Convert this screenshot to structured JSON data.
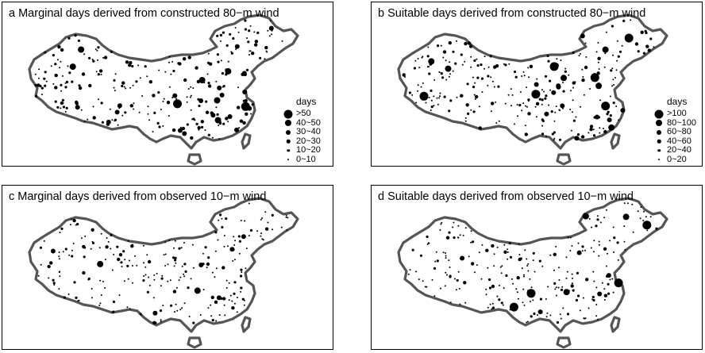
{
  "chart_data": [
    {
      "type": "scatter",
      "panel": "a",
      "title": "a Marginal days derived from constructed 80−m wind",
      "legend": {
        "title": "days",
        "classes": [
          "0~10",
          "10~20",
          "20~30",
          "30~40",
          "40~50",
          ">50"
        ],
        "placement": "right"
      },
      "series": [
        {
          "class": "0~10",
          "count": 120
        },
        {
          "class": "10~20",
          "count": 80
        },
        {
          "class": "20~30",
          "count": 50
        },
        {
          "class": "30~40",
          "count": 18
        },
        {
          "class": "40~50",
          "count": 6
        },
        {
          "class": ">50",
          "count": 2
        }
      ]
    },
    {
      "type": "scatter",
      "panel": "b",
      "title": "b Suitable days derived from constructed 80−m wind",
      "legend": {
        "title": "days",
        "classes": [
          "0~20",
          "20~40",
          "40~60",
          "60~80",
          "80~100",
          ">100"
        ],
        "placement": "right"
      },
      "series": [
        {
          "class": "0~20",
          "count": 160
        },
        {
          "class": "20~40",
          "count": 70
        },
        {
          "class": "40~60",
          "count": 30
        },
        {
          "class": "60~80",
          "count": 12
        },
        {
          "class": "80~100",
          "count": 6
        },
        {
          "class": ">100",
          "count": 6
        }
      ]
    },
    {
      "type": "scatter",
      "panel": "c",
      "title": "c Marginal days derived from observed 10−m wind",
      "legend": {
        "title": "",
        "classes": [
          "0~10",
          "10~20",
          "20~30",
          "30~40",
          "40~50",
          ">50"
        ],
        "placement": "none"
      },
      "series": [
        {
          "class": "0~10",
          "count": 170
        },
        {
          "class": "10~20",
          "count": 55
        },
        {
          "class": "20~30",
          "count": 20
        },
        {
          "class": "30~40",
          "count": 6
        },
        {
          "class": "40~50",
          "count": 2
        },
        {
          "class": ">50",
          "count": 0
        }
      ]
    },
    {
      "type": "scatter",
      "panel": "d",
      "title": "d Suitable days derived from observed 10−m wind",
      "legend": {
        "title": "",
        "classes": [
          "0~20",
          "20~40",
          "40~60",
          "60~80",
          "80~100",
          ">100"
        ],
        "placement": "none"
      },
      "series": [
        {
          "class": "0~20",
          "count": 190
        },
        {
          "class": "20~40",
          "count": 45
        },
        {
          "class": "40~60",
          "count": 14
        },
        {
          "class": "60~80",
          "count": 5
        },
        {
          "class": "80~100",
          "count": 3
        },
        {
          "class": ">100",
          "count": 4
        }
      ]
    }
  ],
  "legend_a": {
    "title": "days",
    "items": [
      ">50",
      "40~50",
      "30~40",
      "20~30",
      "10~20",
      "0~10"
    ]
  },
  "legend_b": {
    "title": "days",
    "items": [
      ">100",
      "80~100",
      "60~80",
      "40~60",
      "20~40",
      "0~20"
    ]
  },
  "colors": {
    "map_outline": "#555555",
    "map_fill": "#ffffff",
    "dots": "#000000",
    "frame": "#000000"
  }
}
